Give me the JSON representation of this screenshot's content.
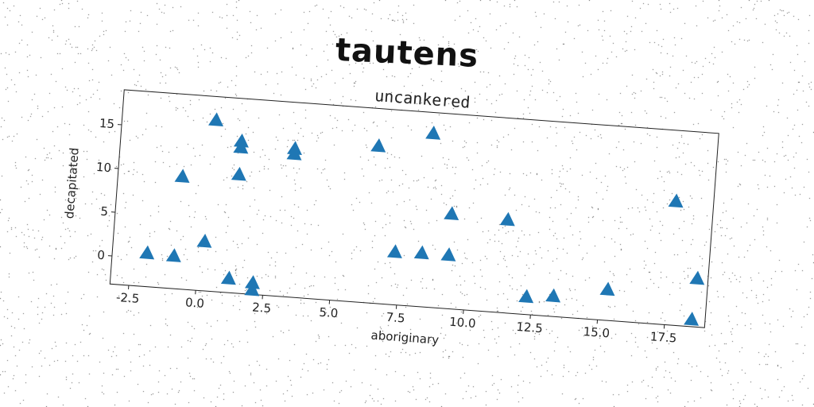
{
  "suptitle": "tautens",
  "chart_data": {
    "type": "scatter",
    "title": "uncankered",
    "xlabel": "aboriginary",
    "ylabel": "decapitated",
    "xlim": [
      -3.2,
      19.0
    ],
    "ylim": [
      -3.2,
      19.0
    ],
    "xticks": [
      "-2.5",
      "0.0",
      "2.5",
      "5.0",
      "7.5",
      "10.0",
      "12.5",
      "15.0",
      "17.5"
    ],
    "yticks": [
      "0",
      "5",
      "10",
      "15"
    ],
    "marker": "triangle-up",
    "color": "#1f77b4",
    "grid": false,
    "series": [
      {
        "x": [
          0.3,
          1.3,
          1.3,
          3.3,
          3.3,
          6.4,
          8.4,
          -0.8,
          1.3,
          9.3,
          11.4,
          17.6,
          -1.9,
          -0.9,
          0.2,
          7.3,
          8.3,
          9.3,
          1.2,
          2.1,
          2.1,
          12.3,
          13.3,
          15.3,
          18.6,
          18.5
        ],
        "y": [
          16.3,
          14.1,
          13.4,
          13.7,
          13.1,
          14.7,
          16.6,
          9.6,
          10.3,
          7.6,
          7.4,
          10.9,
          0.6,
          0.5,
          2.4,
          2.8,
          2.9,
          2.9,
          -1.6,
          -1.9,
          -2.7,
          -1.2,
          -0.9,
          0.3,
          2.3,
          -2.4
        ]
      }
    ]
  }
}
